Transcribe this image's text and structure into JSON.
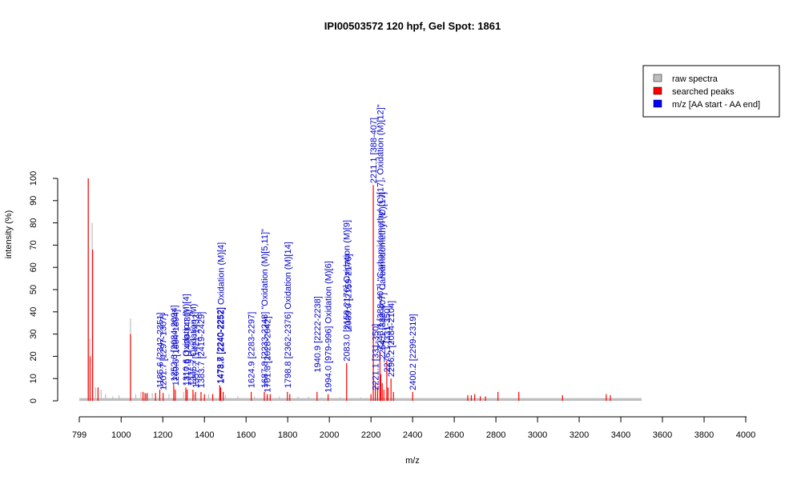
{
  "chart_data": {
    "type": "bar",
    "title": "IPI00503572  120 hpf, Gel Spot: 1861",
    "xlabel": "m/z",
    "ylabel": "intensity (%)",
    "xlim": [
      799,
      4000
    ],
    "ylim": [
      0,
      100
    ],
    "x_ticks": [
      "799",
      "1000",
      "1200",
      "1400",
      "1600",
      "1800",
      "2000",
      "2200",
      "2400",
      "2600",
      "2800",
      "3000",
      "3200",
      "3400",
      "3600",
      "3800",
      "4000"
    ],
    "x_tick_values": [
      799,
      1000,
      1200,
      1400,
      1600,
      1800,
      2000,
      2200,
      2400,
      2600,
      2800,
      3000,
      3200,
      3400,
      3600,
      3800,
      4000
    ],
    "y_ticks": [
      "0",
      "10",
      "20",
      "30",
      "40",
      "50",
      "60",
      "70",
      "80",
      "90",
      "100"
    ],
    "y_tick_values": [
      0,
      10,
      20,
      30,
      40,
      50,
      60,
      70,
      80,
      90,
      100
    ],
    "legend": {
      "position": "top-right",
      "entries": [
        {
          "label": "raw spectra",
          "color": "#bebebe"
        },
        {
          "label": "searched peaks",
          "color": "#ff0000"
        },
        {
          "label": "m/z [AA start - AA end]",
          "color": "#0000ff"
        }
      ]
    },
    "colors": {
      "raw": "#bebebe",
      "peak": "#ff0000",
      "label": "#0000cc"
    },
    "raw_spectrum": [
      {
        "x": 842,
        "y": 100
      },
      {
        "x": 850,
        "y": 28
      },
      {
        "x": 861,
        "y": 80
      },
      {
        "x": 877,
        "y": 6
      },
      {
        "x": 904,
        "y": 5
      },
      {
        "x": 925,
        "y": 3
      },
      {
        "x": 960,
        "y": 2
      },
      {
        "x": 990,
        "y": 2.5
      },
      {
        "x": 1045,
        "y": 37
      },
      {
        "x": 1070,
        "y": 3
      },
      {
        "x": 1095,
        "y": 4
      },
      {
        "x": 1120,
        "y": 3
      },
      {
        "x": 1150,
        "y": 3.5
      },
      {
        "x": 1185,
        "y": 2.5
      },
      {
        "x": 1230,
        "y": 3
      },
      {
        "x": 1300,
        "y": 4
      },
      {
        "x": 1350,
        "y": 3
      },
      {
        "x": 1420,
        "y": 3
      },
      {
        "x": 1500,
        "y": 2.5
      },
      {
        "x": 1560,
        "y": 2
      },
      {
        "x": 1640,
        "y": 2
      },
      {
        "x": 1700,
        "y": 2
      },
      {
        "x": 1760,
        "y": 2
      },
      {
        "x": 1850,
        "y": 1.8
      },
      {
        "x": 1900,
        "y": 1.8
      },
      {
        "x": 1960,
        "y": 1.5
      },
      {
        "x": 2050,
        "y": 1.5
      },
      {
        "x": 2150,
        "y": 1.5
      },
      {
        "x": 2260,
        "y": 1.5
      },
      {
        "x": 2350,
        "y": 1.2
      },
      {
        "x": 2450,
        "y": 1
      },
      {
        "x": 2550,
        "y": 0.8
      },
      {
        "x": 2700,
        "y": 0.8
      },
      {
        "x": 2850,
        "y": 0.6
      },
      {
        "x": 3000,
        "y": 0.6
      },
      {
        "x": 3200,
        "y": 0.5
      },
      {
        "x": 3450,
        "y": 0.5
      }
    ],
    "searched_peaks": [
      {
        "x": 842,
        "y": 100
      },
      {
        "x": 851,
        "y": 20
      },
      {
        "x": 863,
        "y": 68
      },
      {
        "x": 889,
        "y": 6
      },
      {
        "x": 1045,
        "y": 30
      },
      {
        "x": 1105,
        "y": 4
      },
      {
        "x": 1115,
        "y": 3.5
      },
      {
        "x": 1125,
        "y": 3.5
      },
      {
        "x": 1165,
        "y": 3.5
      },
      {
        "x": 1185.6,
        "y": 5
      },
      {
        "x": 1201.7,
        "y": 3.5
      },
      {
        "x": 1252.6,
        "y": 7
      },
      {
        "x": 1260,
        "y": 5
      },
      {
        "x": 1310.6,
        "y": 6
      },
      {
        "x": 1317,
        "y": 5
      },
      {
        "x": 1345,
        "y": 5
      },
      {
        "x": 1357,
        "y": 4
      },
      {
        "x": 1383.7,
        "y": 4
      },
      {
        "x": 1400,
        "y": 3
      },
      {
        "x": 1440,
        "y": 3
      },
      {
        "x": 1473.7,
        "y": 7
      },
      {
        "x": 1478,
        "y": 6
      },
      {
        "x": 1490,
        "y": 4
      },
      {
        "x": 1624.9,
        "y": 4
      },
      {
        "x": 1687.8,
        "y": 4
      },
      {
        "x": 1701.8,
        "y": 3
      },
      {
        "x": 1716,
        "y": 3
      },
      {
        "x": 1798.8,
        "y": 4
      },
      {
        "x": 1810,
        "y": 3
      },
      {
        "x": 1940.9,
        "y": 4
      },
      {
        "x": 1994.0,
        "y": 3
      },
      {
        "x": 2083.0,
        "y": 17
      },
      {
        "x": 2200,
        "y": 3
      },
      {
        "x": 2211.1,
        "y": 97
      },
      {
        "x": 2221.1,
        "y": 8
      },
      {
        "x": 2232,
        "y": 6
      },
      {
        "x": 2243,
        "y": 22
      },
      {
        "x": 2247,
        "y": 12
      },
      {
        "x": 2254,
        "y": 8
      },
      {
        "x": 2262,
        "y": 5
      },
      {
        "x": 2276,
        "y": 18
      },
      {
        "x": 2282,
        "y": 6
      },
      {
        "x": 2296.2,
        "y": 10
      },
      {
        "x": 2308,
        "y": 4
      },
      {
        "x": 2400.2,
        "y": 4
      },
      {
        "x": 2665,
        "y": 2.5
      },
      {
        "x": 2682,
        "y": 2.5
      },
      {
        "x": 2698,
        "y": 3
      },
      {
        "x": 2725,
        "y": 2
      },
      {
        "x": 2750,
        "y": 2
      },
      {
        "x": 2810,
        "y": 4
      },
      {
        "x": 2910,
        "y": 4
      },
      {
        "x": 3120,
        "y": 2.5
      },
      {
        "x": 3330,
        "y": 3
      },
      {
        "x": 3350,
        "y": 2.5
      }
    ],
    "peak_labels": [
      {
        "x": 1185.6,
        "y": 5,
        "text": "1185.6 [2342-2351]"
      },
      {
        "x": 1201.7,
        "y": 4,
        "text": "1201.7 [1297-1307]"
      },
      {
        "x": 1252.6,
        "y": 8,
        "text": "1252.6 [2084-2094]"
      },
      {
        "x": 1260,
        "y": 6,
        "text": "1260.6 [1884-1894]"
      },
      {
        "x": 1310.6,
        "y": 6,
        "text": "1310.6 Oxidation (M)[4]"
      },
      {
        "x": 1317,
        "y": 6,
        "text": "1317.6 [1420-1431]"
      },
      {
        "x": 1345,
        "y": 6,
        "text": "1345.7 Oxidation (M)"
      },
      {
        "x": 1357,
        "y": 5,
        "text": "1357.7 [1421-1432]"
      },
      {
        "x": 1383.7,
        "y": 5,
        "text": "1383.7 [2419-2429]"
      },
      {
        "x": 1473.7,
        "y": 7,
        "text": "1473.7 [2240-2252]"
      },
      {
        "x": 1478,
        "y": 7,
        "text": "1478.8 [2240-2252] Oxidation (M)[4]"
      },
      {
        "x": 1624.9,
        "y": 5,
        "text": "1624.9 [2283-2297]"
      },
      {
        "x": 1687.8,
        "y": 5,
        "text": "1687.8 [2233-2248] \"Oxidation (M)[5,11]\""
      },
      {
        "x": 1701.8,
        "y": 3,
        "text": "1701.8 [2028-2042]"
      },
      {
        "x": 1798.8,
        "y": 5,
        "text": "1798.8 [2362-2376] Oxidation (M)[14]"
      },
      {
        "x": 1940.9,
        "y": 12,
        "text": "1940.9 [2222-2238]"
      },
      {
        "x": 1994.0,
        "y": 3,
        "text": "1994.0 [979-996] Oxidation (M)[6]"
      },
      {
        "x": 2083.0,
        "y": 17,
        "text": "2083.0 [2159-2176] Oxidation (M)[9]"
      },
      {
        "x": 2089,
        "y": 31,
        "text": "2089.0 [2159-2176]"
      },
      {
        "x": 2211.1,
        "y": 97,
        "text": "2211.1 [388-407]"
      },
      {
        "x": 2221.1,
        "y": 4,
        "text": "2221.1 [331-350]"
      },
      {
        "x": 2243,
        "y": 22,
        "text": "2243.1 [388-407] \"Carbamidomethyl (C)[17], Oxidation (M)[12]\""
      },
      {
        "x": 2254,
        "y": 18,
        "text": "2254.1 [388-407] Carbamidomethyl (C)[17]"
      },
      {
        "x": 2276,
        "y": 12,
        "text": "2276.1 [331-350]"
      },
      {
        "x": 2296.2,
        "y": 10,
        "text": "2296.2 [2084-2104]"
      },
      {
        "x": 2400.2,
        "y": 4,
        "text": "2400.2 [2299-2319]"
      }
    ]
  }
}
